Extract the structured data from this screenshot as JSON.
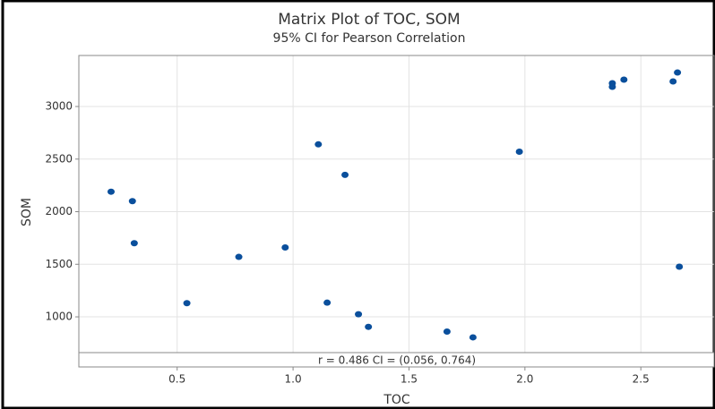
{
  "chart_data": {
    "type": "scatter",
    "title": "Matrix Plot of TOC, SOM",
    "subtitle": "95% CI for Pearson Correlation",
    "x_label": "TOC",
    "y_label": "SOM",
    "annotation": "r = 0.486  CI = (0.056, 0.764)",
    "color": "#0a4f9c",
    "grid": true,
    "xlim": [
      0.076,
      2.816
    ],
    "xticks": [
      0.5,
      {
        "value": 1,
        "label": "1.0"
      },
      1.5,
      {
        "value": 2,
        "label": "2.0"
      },
      2.5
    ],
    "ylim": [
      660,
      3485
    ],
    "yticks": [
      1000,
      1500,
      2000,
      2500,
      3000
    ],
    "x": [
      0.215,
      0.307,
      0.315,
      0.542,
      0.766,
      0.966,
      1.109,
      1.147,
      1.224,
      1.282,
      1.325,
      1.664,
      1.776,
      1.976,
      2.377,
      2.377,
      2.427,
      2.639,
      2.658,
      2.666
    ],
    "values": [
      2190,
      2100,
      1700,
      1130,
      1570,
      1660,
      2640,
      1135,
      2350,
      1025,
      905,
      860,
      805,
      2570,
      3221,
      3187,
      3255,
      3238,
      3323,
      1477
    ]
  }
}
